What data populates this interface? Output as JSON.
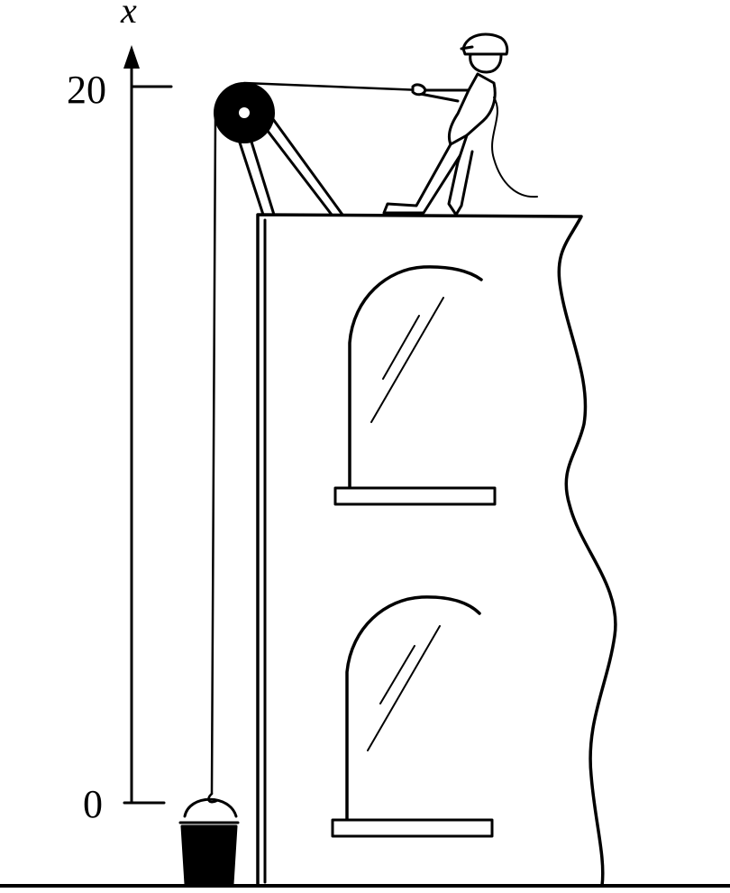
{
  "axis": {
    "variable": "x",
    "tick_top": "20",
    "tick_bottom": "0"
  },
  "colors": {
    "ink": "#000000",
    "paper": "#ffffff"
  }
}
